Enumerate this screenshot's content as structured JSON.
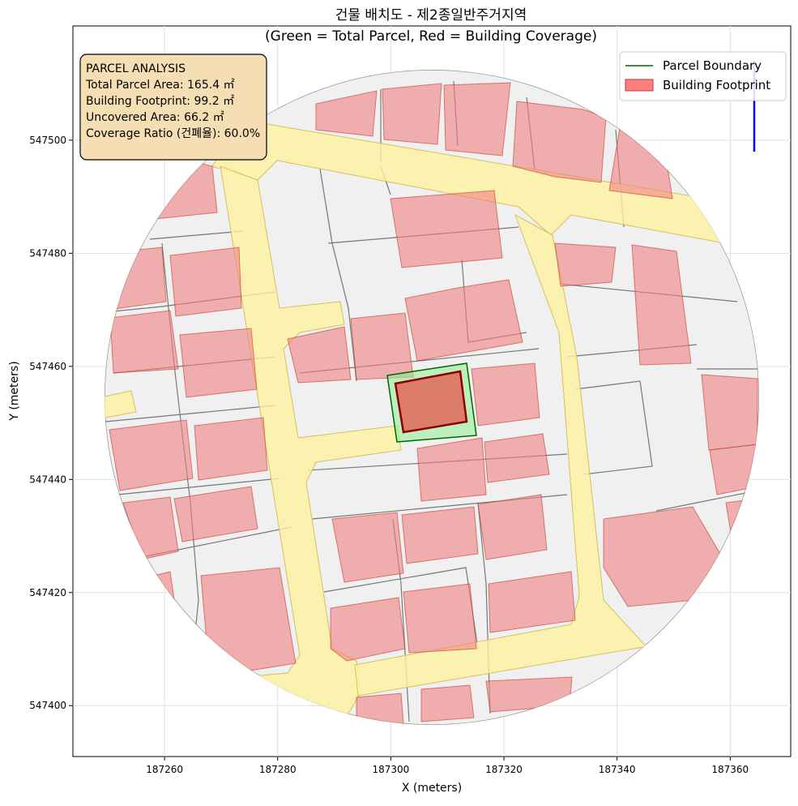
{
  "chart_data": {
    "type": "map",
    "title": [
      "건물 배치도 - 제2종일반주거지역",
      "(Green = Total Parcel, Red = Building Coverage)"
    ],
    "xlabel": "X (meters)",
    "ylabel": "Y (meters)",
    "xlim": [
      187243.8,
      187370.7
    ],
    "ylim": [
      547391.0,
      547520.2
    ],
    "xticks": [
      187260,
      187280,
      187300,
      187320,
      187340,
      187360
    ],
    "yticks": [
      547400,
      547420,
      547440,
      547460,
      547480,
      547500
    ],
    "grid": true,
    "legend_position": "upper right",
    "legend": [
      {
        "name": "Parcel Boundary",
        "color": "#006400",
        "kind": "line"
      },
      {
        "name": "Building Footprint",
        "color": "#ff7f7f",
        "kind": "patch"
      }
    ],
    "annotation": [
      "PARCEL ANALYSIS",
      "Total Parcel Area: 165.4 ㎡",
      "Building Footprint: 99.2 ㎡",
      "Uncovered Area: 66.2 ㎡",
      "Coverage Ratio (건폐율): 60.0%"
    ]
  }
}
